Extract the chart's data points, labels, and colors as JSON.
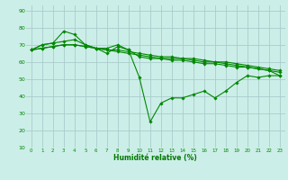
{
  "bg_color": "#cceee8",
  "grid_color": "#aacccc",
  "line_color": "#008800",
  "marker_color": "#008800",
  "xlabel": "Humidité relative (%)",
  "xlabel_color": "#007700",
  "tick_color": "#008800",
  "ylim": [
    10,
    93
  ],
  "xlim": [
    -0.5,
    23.5
  ],
  "yticks": [
    10,
    20,
    30,
    40,
    50,
    60,
    70,
    80,
    90
  ],
  "xticks": [
    0,
    1,
    2,
    3,
    4,
    5,
    6,
    7,
    8,
    9,
    10,
    11,
    12,
    13,
    14,
    15,
    16,
    17,
    18,
    19,
    20,
    21,
    22,
    23
  ],
  "series": [
    [
      67,
      70,
      71,
      78,
      76,
      70,
      68,
      65,
      69,
      67,
      51,
      25,
      36,
      39,
      39,
      41,
      43,
      39,
      43,
      48,
      52,
      51,
      52,
      52
    ],
    [
      67,
      70,
      71,
      72,
      73,
      70,
      68,
      68,
      70,
      67,
      63,
      62,
      62,
      62,
      62,
      62,
      61,
      60,
      60,
      59,
      58,
      57,
      56,
      55
    ],
    [
      67,
      68,
      69,
      70,
      70,
      69,
      68,
      67,
      67,
      66,
      65,
      64,
      63,
      63,
      62,
      61,
      60,
      60,
      59,
      58,
      57,
      56,
      55,
      54
    ],
    [
      67,
      68,
      69,
      70,
      70,
      69,
      68,
      67,
      66,
      65,
      64,
      63,
      62,
      61,
      61,
      60,
      59,
      59,
      58,
      57,
      57,
      56,
      55,
      52
    ]
  ]
}
